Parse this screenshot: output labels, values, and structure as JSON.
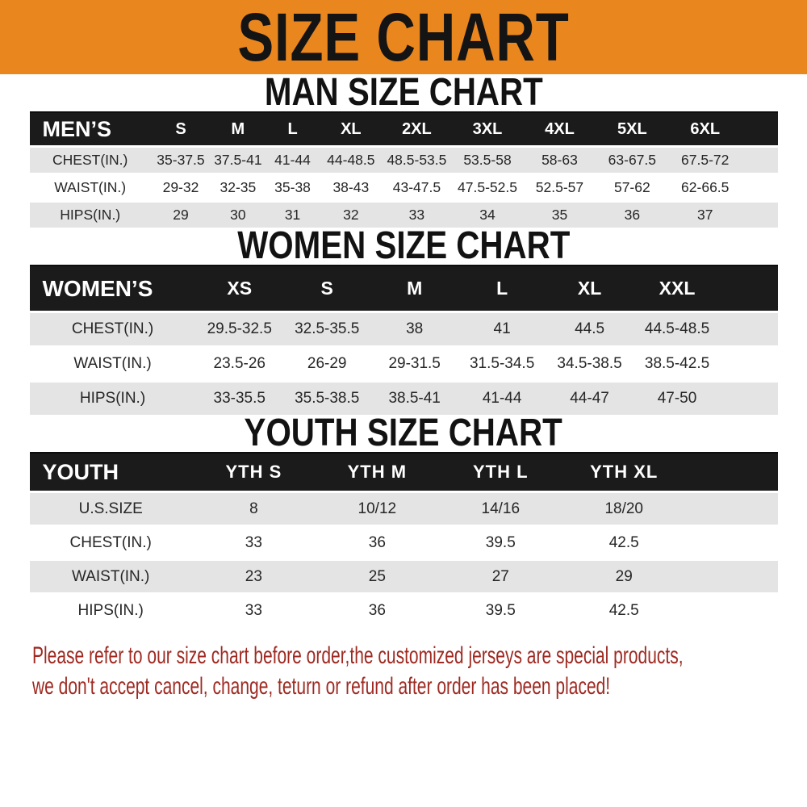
{
  "banner": {
    "title": "SIZE CHART"
  },
  "colors": {
    "banner_orange": "#E9861E",
    "table_header_black": "#1B1B1B",
    "row_stripe_gray": "#E4E4E4",
    "footer_red": "#9E2A22"
  },
  "sections": [
    {
      "heading": "MAN SIZE CHART",
      "table_label": "MEN’S",
      "columns": [
        "S",
        "M",
        "L",
        "XL",
        "2XL",
        "3XL",
        "4XL",
        "5XL",
        "6XL"
      ],
      "rows": [
        {
          "label": "CHEST(IN.)",
          "values": [
            "35-37.5",
            "37.5-41",
            "41-44",
            "44-48.5",
            "48.5-53.5",
            "53.5-58",
            "58-63",
            "63-67.5",
            "67.5-72"
          ]
        },
        {
          "label": "WAIST(IN.)",
          "values": [
            "29-32",
            "32-35",
            "35-38",
            "38-43",
            "43-47.5",
            "47.5-52.5",
            "52.5-57",
            "57-62",
            "62-66.5"
          ]
        },
        {
          "label": "HIPS(IN.)",
          "values": [
            "29",
            "30",
            "31",
            "32",
            "33",
            "34",
            "35",
            "36",
            "37"
          ]
        }
      ]
    },
    {
      "heading": "WOMEN SIZE CHART",
      "table_label": "WOMEN’S",
      "columns": [
        "XS",
        "S",
        "M",
        "L",
        "XL",
        "XXL"
      ],
      "rows": [
        {
          "label": "CHEST(IN.)",
          "values": [
            "29.5-32.5",
            "32.5-35.5",
            "38",
            "41",
            "44.5",
            "44.5-48.5"
          ]
        },
        {
          "label": "WAIST(IN.)",
          "values": [
            "23.5-26",
            "26-29",
            "29-31.5",
            "31.5-34.5",
            "34.5-38.5",
            "38.5-42.5"
          ]
        },
        {
          "label": "HIPS(IN.)",
          "values": [
            "33-35.5",
            "35.5-38.5",
            "38.5-41",
            "41-44",
            "44-47",
            "47-50"
          ]
        }
      ]
    },
    {
      "heading": "YOUTH SIZE CHART",
      "table_label": "YOUTH",
      "columns": [
        "YTH S",
        "YTH M",
        "YTH L",
        "YTH XL"
      ],
      "rows": [
        {
          "label": "U.S.SIZE",
          "values": [
            "8",
            "10/12",
            "14/16",
            "18/20"
          ]
        },
        {
          "label": "CHEST(IN.)",
          "values": [
            "33",
            "36",
            "39.5",
            "42.5"
          ]
        },
        {
          "label": "WAIST(IN.)",
          "values": [
            "23",
            "25",
            "27",
            "29"
          ]
        },
        {
          "label": "HIPS(IN.)",
          "values": [
            "33",
            "36",
            "39.5",
            "42.5"
          ]
        }
      ]
    }
  ],
  "footer": {
    "line1": "Please refer to our size chart before order,the customized jerseys are special products,",
    "line2": "we don't accept cancel, change, teturn or refund after order has been placed!"
  }
}
